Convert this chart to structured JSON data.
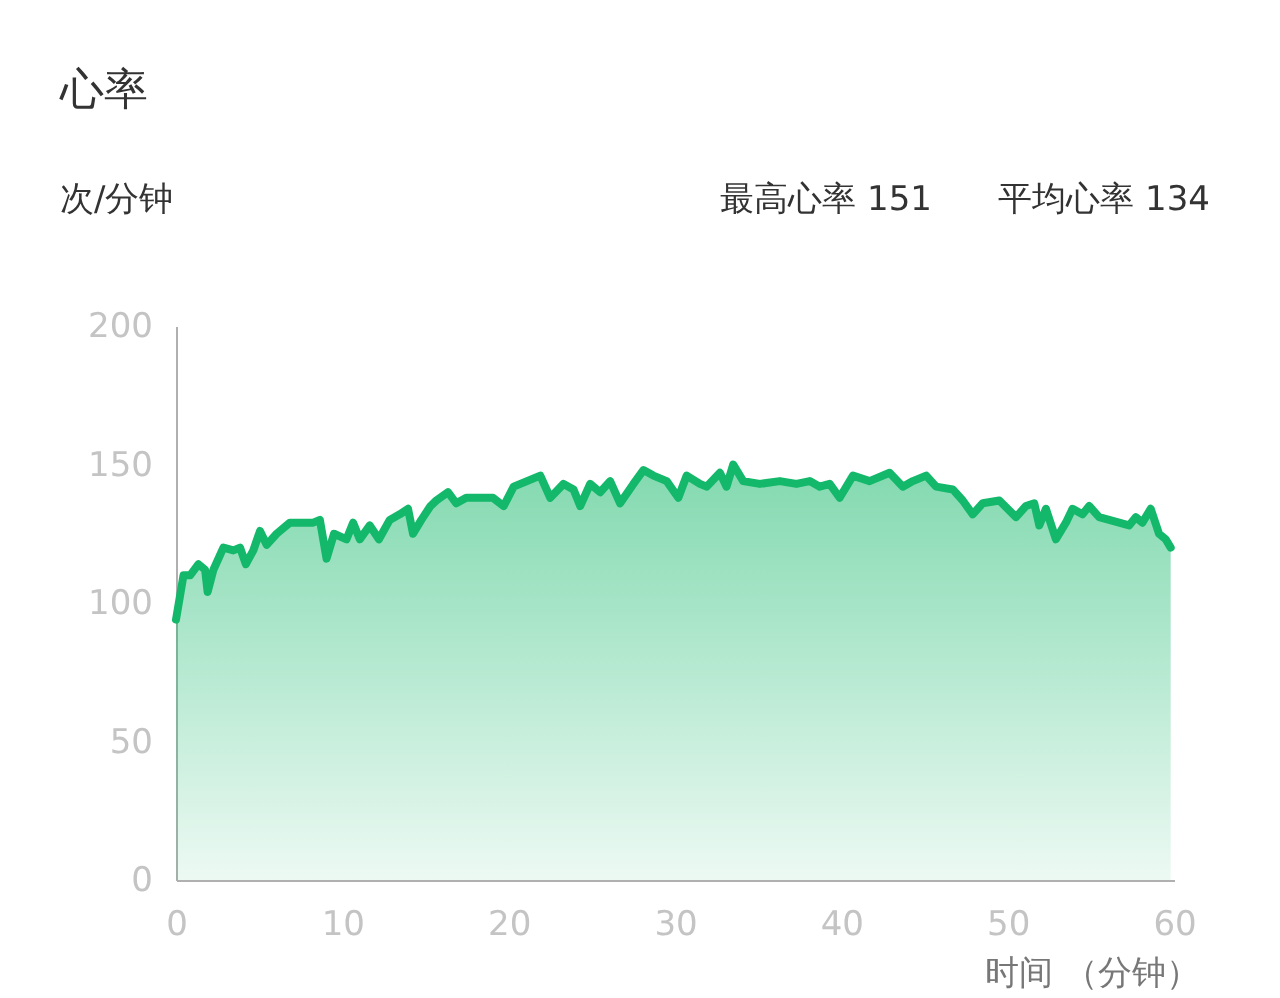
{
  "chart_data": {
    "type": "area",
    "title": "心率",
    "ylabel": "次/分钟",
    "xlabel": "时间 （分钟）",
    "annotations": [
      "最高心率 151",
      "平均心率 134"
    ],
    "xlim": [
      0,
      60
    ],
    "xticks": [
      0,
      10,
      20,
      30,
      40,
      50,
      60
    ],
    "ylim": [
      0,
      200
    ],
    "yticks": [
      0,
      50,
      100,
      150,
      200
    ],
    "grid": false,
    "series": [
      {
        "color": "#14b86a",
        "x": [
          0,
          0.45,
          0.85,
          1.35,
          1.75,
          1.9,
          2.25,
          2.85,
          3.45,
          3.85,
          4.2,
          4.65,
          5.05,
          5.45,
          6.05,
          6.85,
          7.65,
          8.25,
          8.65,
          9.05,
          9.5,
          10.25,
          10.65,
          11.05,
          11.65,
          12.2,
          12.85,
          13.45,
          13.95,
          14.25,
          14.75,
          15.3,
          15.65,
          16.35,
          16.85,
          17.45,
          18.25,
          19.05,
          19.7,
          20.3,
          21.1,
          21.9,
          22.5,
          23.3,
          23.9,
          24.3,
          24.9,
          25.5,
          26.1,
          26.7,
          27.5,
          28.1,
          28.7,
          29.5,
          30.2,
          30.7,
          31.5,
          31.9,
          32.7,
          33.1,
          33.5,
          34.1,
          35.1,
          36.3,
          37.3,
          38.1,
          38.7,
          39.3,
          39.9,
          40.7,
          41.7,
          42.9,
          43.7,
          44.3,
          45.1,
          45.7,
          46.7,
          47.3,
          47.9,
          48.5,
          49.5,
          50.5,
          51.1,
          51.6,
          51.9,
          52.3,
          52.9,
          53.5,
          53.9,
          54.5,
          54.9,
          55.5,
          56.7,
          57.3,
          57.7,
          58.1,
          58.6,
          59.1,
          59.5,
          59.8
        ],
        "values": [
          94,
          110,
          110,
          114,
          112,
          104,
          112,
          120,
          119,
          120,
          114,
          119,
          126,
          121,
          125,
          129,
          129,
          129,
          130,
          116,
          125,
          123,
          129,
          123,
          128,
          123,
          130,
          132,
          134,
          125,
          130,
          135,
          137,
          140,
          136,
          138,
          138,
          138,
          135,
          142,
          144,
          146,
          138,
          143,
          141,
          135,
          143,
          140,
          144,
          136,
          143,
          148,
          146,
          144,
          138,
          146,
          143,
          142,
          147,
          142,
          150,
          144,
          143,
          144,
          143,
          144,
          142,
          143,
          138,
          146,
          144,
          147,
          142,
          144,
          146,
          142,
          141,
          137,
          132,
          136,
          137,
          131,
          135,
          136,
          128,
          134,
          123,
          129,
          134,
          132,
          135,
          131,
          129,
          128,
          131,
          129,
          134,
          125,
          123,
          120
        ]
      }
    ]
  }
}
